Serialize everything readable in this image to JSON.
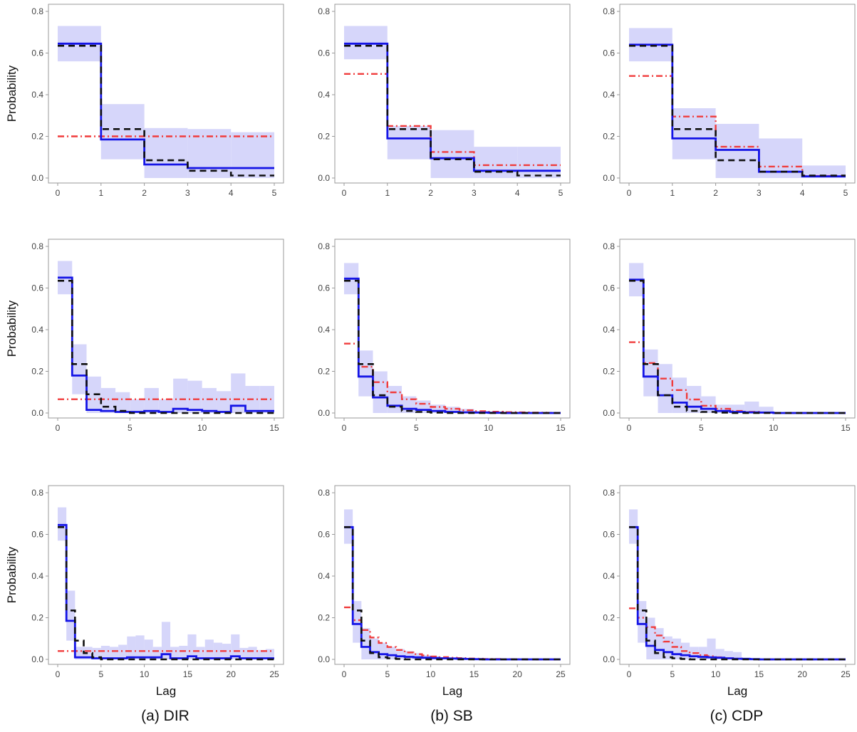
{
  "figure": {
    "ylabel": "Probability",
    "xlabel": "Lag",
    "captions": [
      "(a) DIR",
      "(b) SB",
      "(c) CDP"
    ],
    "colors": {
      "band": "#d6d6fa",
      "posterior_mean": "#1414e6",
      "truth": "#111111",
      "prior": "#f03c3c",
      "axes": "#999999"
    }
  },
  "chart_data": [
    {
      "type": "step",
      "model": "DIR",
      "row": 1,
      "xlim": [
        0,
        5
      ],
      "ylim": [
        0,
        0.8
      ],
      "xticks": [
        0,
        1,
        2,
        3,
        4,
        5
      ],
      "yticks": [
        0,
        0.2,
        0.4,
        0.6,
        0.8
      ],
      "ytick_labels": [
        "0.0",
        "0.2",
        "0.4",
        "0.6",
        "0.8"
      ],
      "show_ylabel": true,
      "show_xlabel": false,
      "series": [
        {
          "values": [
            0.645,
            0.185,
            0.065,
            0.048,
            0.048
          ]
        },
        {
          "values": [
            0.635,
            0.235,
            0.085,
            0.035,
            0.012
          ]
        },
        {
          "values": [
            0.2,
            0.2,
            0.2,
            0.2,
            0.2
          ]
        }
      ],
      "band": {
        "lower": [
          0.56,
          0.09,
          0.0,
          0.0,
          0.0
        ],
        "upper": [
          0.73,
          0.355,
          0.24,
          0.235,
          0.22
        ]
      }
    },
    {
      "type": "step",
      "model": "SB",
      "row": 1,
      "xlim": [
        0,
        5
      ],
      "ylim": [
        0,
        0.8
      ],
      "xticks": [
        0,
        1,
        2,
        3,
        4,
        5
      ],
      "yticks": [
        0,
        0.2,
        0.4,
        0.6,
        0.8
      ],
      "ytick_labels": [
        "0.0",
        "0.2",
        "0.4",
        "0.6",
        "0.8"
      ],
      "show_ylabel": false,
      "show_xlabel": false,
      "series": [
        {
          "values": [
            0.645,
            0.19,
            0.095,
            0.035,
            0.035
          ]
        },
        {
          "values": [
            0.635,
            0.235,
            0.09,
            0.03,
            0.012
          ]
        },
        {
          "values": [
            0.5,
            0.25,
            0.125,
            0.062,
            0.062
          ]
        }
      ],
      "band": {
        "lower": [
          0.57,
          0.09,
          0.0,
          0.0,
          0.0
        ],
        "upper": [
          0.73,
          0.25,
          0.23,
          0.15,
          0.15
        ]
      }
    },
    {
      "type": "step",
      "model": "CDP",
      "row": 1,
      "xlim": [
        0,
        5
      ],
      "ylim": [
        0,
        0.8
      ],
      "xticks": [
        0,
        1,
        2,
        3,
        4,
        5
      ],
      "yticks": [
        0,
        0.2,
        0.4,
        0.6,
        0.8
      ],
      "ytick_labels": [
        "0.0",
        "0.2",
        "0.4",
        "0.6",
        "0.8"
      ],
      "show_ylabel": false,
      "show_xlabel": false,
      "series": [
        {
          "values": [
            0.64,
            0.19,
            0.135,
            0.03,
            0.008
          ]
        },
        {
          "values": [
            0.635,
            0.235,
            0.085,
            0.03,
            0.012
          ]
        },
        {
          "values": [
            0.49,
            0.295,
            0.15,
            0.055,
            0.01
          ]
        }
      ],
      "band": {
        "lower": [
          0.56,
          0.09,
          0.0,
          0.0,
          0.0
        ],
        "upper": [
          0.72,
          0.335,
          0.26,
          0.19,
          0.06
        ]
      }
    },
    {
      "type": "step",
      "model": "DIR",
      "row": 2,
      "xlim": [
        0,
        15
      ],
      "ylim": [
        0,
        0.8
      ],
      "xticks": [
        0,
        5,
        10,
        15
      ],
      "yticks": [
        0,
        0.2,
        0.4,
        0.6,
        0.8
      ],
      "ytick_labels": [
        "0.0",
        "0.2",
        "0.4",
        "0.6",
        "0.8"
      ],
      "show_ylabel": true,
      "show_xlabel": false,
      "series": [
        {
          "values": [
            0.65,
            0.18,
            0.015,
            0.01,
            0.005,
            0.005,
            0.01,
            0.005,
            0.02,
            0.015,
            0.01,
            0.005,
            0.035,
            0.01,
            0.01
          ]
        },
        {
          "values": [
            0.635,
            0.235,
            0.09,
            0.03,
            0.01,
            0.0,
            0.0,
            0.0,
            0.0,
            0.0,
            0.0,
            0.0,
            0.0,
            0.0,
            0.0
          ]
        },
        {
          "values": [
            0.066,
            0.066,
            0.066,
            0.066,
            0.066,
            0.066,
            0.066,
            0.066,
            0.066,
            0.066,
            0.066,
            0.066,
            0.066,
            0.066,
            0.066
          ]
        }
      ],
      "band": {
        "lower": [
          0.57,
          0.09,
          0.0,
          0.0,
          0.0,
          0.0,
          0.0,
          0.0,
          0.0,
          0.0,
          0.0,
          0.0,
          0.0,
          0.0,
          0.0
        ],
        "upper": [
          0.73,
          0.33,
          0.175,
          0.12,
          0.1,
          0.065,
          0.12,
          0.065,
          0.165,
          0.155,
          0.12,
          0.105,
          0.19,
          0.13,
          0.13
        ]
      }
    },
    {
      "type": "step",
      "model": "SB",
      "row": 2,
      "xlim": [
        0,
        15
      ],
      "ylim": [
        0,
        0.8
      ],
      "xticks": [
        0,
        5,
        10,
        15
      ],
      "yticks": [
        0,
        0.2,
        0.4,
        0.6,
        0.8
      ],
      "ytick_labels": [
        "0.0",
        "0.2",
        "0.4",
        "0.6",
        "0.8"
      ],
      "show_ylabel": false,
      "show_xlabel": false,
      "series": [
        {
          "values": [
            0.645,
            0.175,
            0.075,
            0.035,
            0.02,
            0.015,
            0.01,
            0.005,
            0.003,
            0.002,
            0.001,
            0,
            0,
            0,
            0
          ]
        },
        {
          "values": [
            0.635,
            0.235,
            0.085,
            0.03,
            0.01,
            0.005,
            0.002,
            0,
            0,
            0,
            0,
            0,
            0,
            0,
            0
          ]
        },
        {
          "values": [
            0.333,
            0.222,
            0.148,
            0.099,
            0.066,
            0.044,
            0.029,
            0.02,
            0.013,
            0.009,
            0.006,
            0.004,
            0.003,
            0.002,
            0.001
          ]
        }
      ],
      "band": {
        "lower": [
          0.57,
          0.08,
          0.0,
          0.0,
          0.0,
          0.0,
          0.0,
          0.0,
          0.0,
          0.0,
          0.0,
          0.0,
          0.0,
          0.0,
          0.0
        ],
        "upper": [
          0.72,
          0.3,
          0.2,
          0.13,
          0.08,
          0.06,
          0.04,
          0.03,
          0.02,
          0.01,
          0.0,
          0.0,
          0.0,
          0.0,
          0.0
        ]
      }
    },
    {
      "type": "step",
      "model": "CDP",
      "row": 2,
      "xlim": [
        0,
        15
      ],
      "ylim": [
        0,
        0.8
      ],
      "xticks": [
        0,
        5,
        10,
        15
      ],
      "yticks": [
        0,
        0.2,
        0.4,
        0.6,
        0.8
      ],
      "ytick_labels": [
        "0.0",
        "0.2",
        "0.4",
        "0.6",
        "0.8"
      ],
      "show_ylabel": false,
      "show_xlabel": false,
      "series": [
        {
          "values": [
            0.64,
            0.175,
            0.085,
            0.05,
            0.03,
            0.02,
            0.01,
            0.005,
            0.003,
            0.002,
            0,
            0,
            0,
            0,
            0
          ]
        },
        {
          "values": [
            0.635,
            0.235,
            0.085,
            0.03,
            0.01,
            0.005,
            0.002,
            0,
            0,
            0,
            0,
            0,
            0,
            0,
            0
          ]
        },
        {
          "values": [
            0.34,
            0.24,
            0.165,
            0.11,
            0.065,
            0.035,
            0.02,
            0.01,
            0.005,
            0.002,
            0,
            0,
            0,
            0,
            0
          ]
        }
      ],
      "band": {
        "lower": [
          0.56,
          0.08,
          0.0,
          0.0,
          0.0,
          0.0,
          0.0,
          0.0,
          0.0,
          0.0,
          0.0,
          0.0,
          0.0,
          0.0,
          0.0
        ],
        "upper": [
          0.72,
          0.305,
          0.235,
          0.17,
          0.13,
          0.08,
          0.04,
          0.04,
          0.055,
          0.03,
          0.0,
          0.0,
          0.0,
          0.0,
          0.0
        ]
      }
    },
    {
      "type": "step",
      "model": "DIR",
      "row": 3,
      "xlim": [
        0,
        25
      ],
      "ylim": [
        0,
        0.8
      ],
      "xticks": [
        0,
        5,
        10,
        15,
        20,
        25
      ],
      "yticks": [
        0,
        0.2,
        0.4,
        0.6,
        0.8
      ],
      "ytick_labels": [
        "0.0",
        "0.2",
        "0.4",
        "0.6",
        "0.8"
      ],
      "show_ylabel": true,
      "show_xlabel": true,
      "series": [
        {
          "values": [
            0.645,
            0.185,
            0.01,
            0.01,
            0.005,
            0.005,
            0.005,
            0.005,
            0.01,
            0.01,
            0.01,
            0.01,
            0.025,
            0.005,
            0.005,
            0.015,
            0.005,
            0.005,
            0.005,
            0.005,
            0.015,
            0.005,
            0.005,
            0.005,
            0.005
          ]
        },
        {
          "values": [
            0.635,
            0.235,
            0.09,
            0.03,
            0.01,
            0,
            0,
            0,
            0,
            0,
            0,
            0,
            0,
            0,
            0,
            0,
            0,
            0,
            0,
            0,
            0,
            0,
            0,
            0,
            0
          ]
        },
        {
          "values": [
            0.04,
            0.04,
            0.04,
            0.04,
            0.04,
            0.04,
            0.04,
            0.04,
            0.04,
            0.04,
            0.04,
            0.04,
            0.04,
            0.04,
            0.04,
            0.04,
            0.04,
            0.04,
            0.04,
            0.04,
            0.04,
            0.04,
            0.04,
            0.04,
            0.04
          ]
        }
      ],
      "band": {
        "lower": [
          0.57,
          0.09,
          0,
          0,
          0,
          0,
          0,
          0,
          0,
          0,
          0,
          0,
          0,
          0,
          0,
          0,
          0,
          0,
          0,
          0,
          0,
          0,
          0,
          0,
          0
        ],
        "upper": [
          0.73,
          0.33,
          0.06,
          0.06,
          0.055,
          0.065,
          0.06,
          0.07,
          0.11,
          0.115,
          0.095,
          0.06,
          0.18,
          0.06,
          0.065,
          0.12,
          0.06,
          0.095,
          0.08,
          0.075,
          0.12,
          0.055,
          0.06,
          0.045,
          0.05
        ]
      }
    },
    {
      "type": "step",
      "model": "SB",
      "row": 3,
      "xlim": [
        0,
        25
      ],
      "ylim": [
        0,
        0.8
      ],
      "xticks": [
        0,
        5,
        10,
        15,
        20,
        25
      ],
      "yticks": [
        0,
        0.2,
        0.4,
        0.6,
        0.8
      ],
      "ytick_labels": [
        "0.0",
        "0.2",
        "0.4",
        "0.6",
        "0.8"
      ],
      "show_ylabel": false,
      "show_xlabel": true,
      "series": [
        {
          "values": [
            0.635,
            0.17,
            0.06,
            0.035,
            0.025,
            0.02,
            0.015,
            0.012,
            0.01,
            0.008,
            0.006,
            0.005,
            0.004,
            0.003,
            0.002,
            0.001,
            0,
            0,
            0,
            0,
            0,
            0,
            0,
            0,
            0
          ]
        },
        {
          "values": [
            0.635,
            0.235,
            0.09,
            0.03,
            0.01,
            0.005,
            0.002,
            0,
            0,
            0,
            0,
            0,
            0,
            0,
            0,
            0,
            0,
            0,
            0,
            0,
            0,
            0,
            0,
            0,
            0
          ]
        },
        {
          "values": [
            0.25,
            0.188,
            0.141,
            0.105,
            0.079,
            0.059,
            0.045,
            0.033,
            0.025,
            0.019,
            0.014,
            0.011,
            0.008,
            0.006,
            0.004,
            0.003,
            0.002,
            0.002,
            0.001,
            0.001,
            0.001,
            0,
            0,
            0,
            0
          ]
        }
      ],
      "band": {
        "lower": [
          0.555,
          0.08,
          0,
          0,
          0,
          0,
          0,
          0,
          0,
          0,
          0,
          0,
          0,
          0,
          0,
          0,
          0,
          0,
          0,
          0,
          0,
          0,
          0,
          0,
          0
        ],
        "upper": [
          0.72,
          0.28,
          0.15,
          0.1,
          0.08,
          0.06,
          0.05,
          0.04,
          0.03,
          0.02,
          0.015,
          0.01,
          0.005,
          0,
          0,
          0,
          0,
          0,
          0,
          0,
          0,
          0,
          0,
          0,
          0
        ]
      }
    },
    {
      "type": "step",
      "model": "CDP",
      "row": 3,
      "xlim": [
        0,
        25
      ],
      "ylim": [
        0,
        0.8
      ],
      "xticks": [
        0,
        5,
        10,
        15,
        20,
        25
      ],
      "yticks": [
        0,
        0.2,
        0.4,
        0.6,
        0.8
      ],
      "ytick_labels": [
        "0.0",
        "0.2",
        "0.4",
        "0.6",
        "0.8"
      ],
      "show_ylabel": false,
      "show_xlabel": true,
      "series": [
        {
          "values": [
            0.635,
            0.17,
            0.065,
            0.045,
            0.035,
            0.025,
            0.02,
            0.015,
            0.012,
            0.01,
            0.008,
            0.005,
            0.003,
            0.002,
            0.001,
            0,
            0,
            0,
            0,
            0,
            0,
            0,
            0,
            0,
            0
          ]
        },
        {
          "values": [
            0.635,
            0.235,
            0.09,
            0.03,
            0.01,
            0.005,
            0.002,
            0,
            0,
            0,
            0,
            0,
            0,
            0,
            0,
            0,
            0,
            0,
            0,
            0,
            0,
            0,
            0,
            0,
            0
          ]
        },
        {
          "values": [
            0.245,
            0.2,
            0.155,
            0.115,
            0.085,
            0.06,
            0.04,
            0.03,
            0.02,
            0.015,
            0.01,
            0.005,
            0.003,
            0.002,
            0.001,
            0,
            0,
            0,
            0,
            0,
            0,
            0,
            0,
            0,
            0
          ]
        }
      ],
      "band": {
        "lower": [
          0.555,
          0.08,
          0,
          0,
          0,
          0,
          0,
          0,
          0,
          0,
          0,
          0,
          0,
          0,
          0,
          0,
          0,
          0,
          0,
          0,
          0,
          0,
          0,
          0,
          0
        ],
        "upper": [
          0.72,
          0.28,
          0.2,
          0.15,
          0.11,
          0.1,
          0.08,
          0.06,
          0.06,
          0.1,
          0.05,
          0.04,
          0.035,
          0.01,
          0,
          0,
          0,
          0,
          0,
          0,
          0,
          0,
          0,
          0,
          0
        ]
      }
    }
  ]
}
